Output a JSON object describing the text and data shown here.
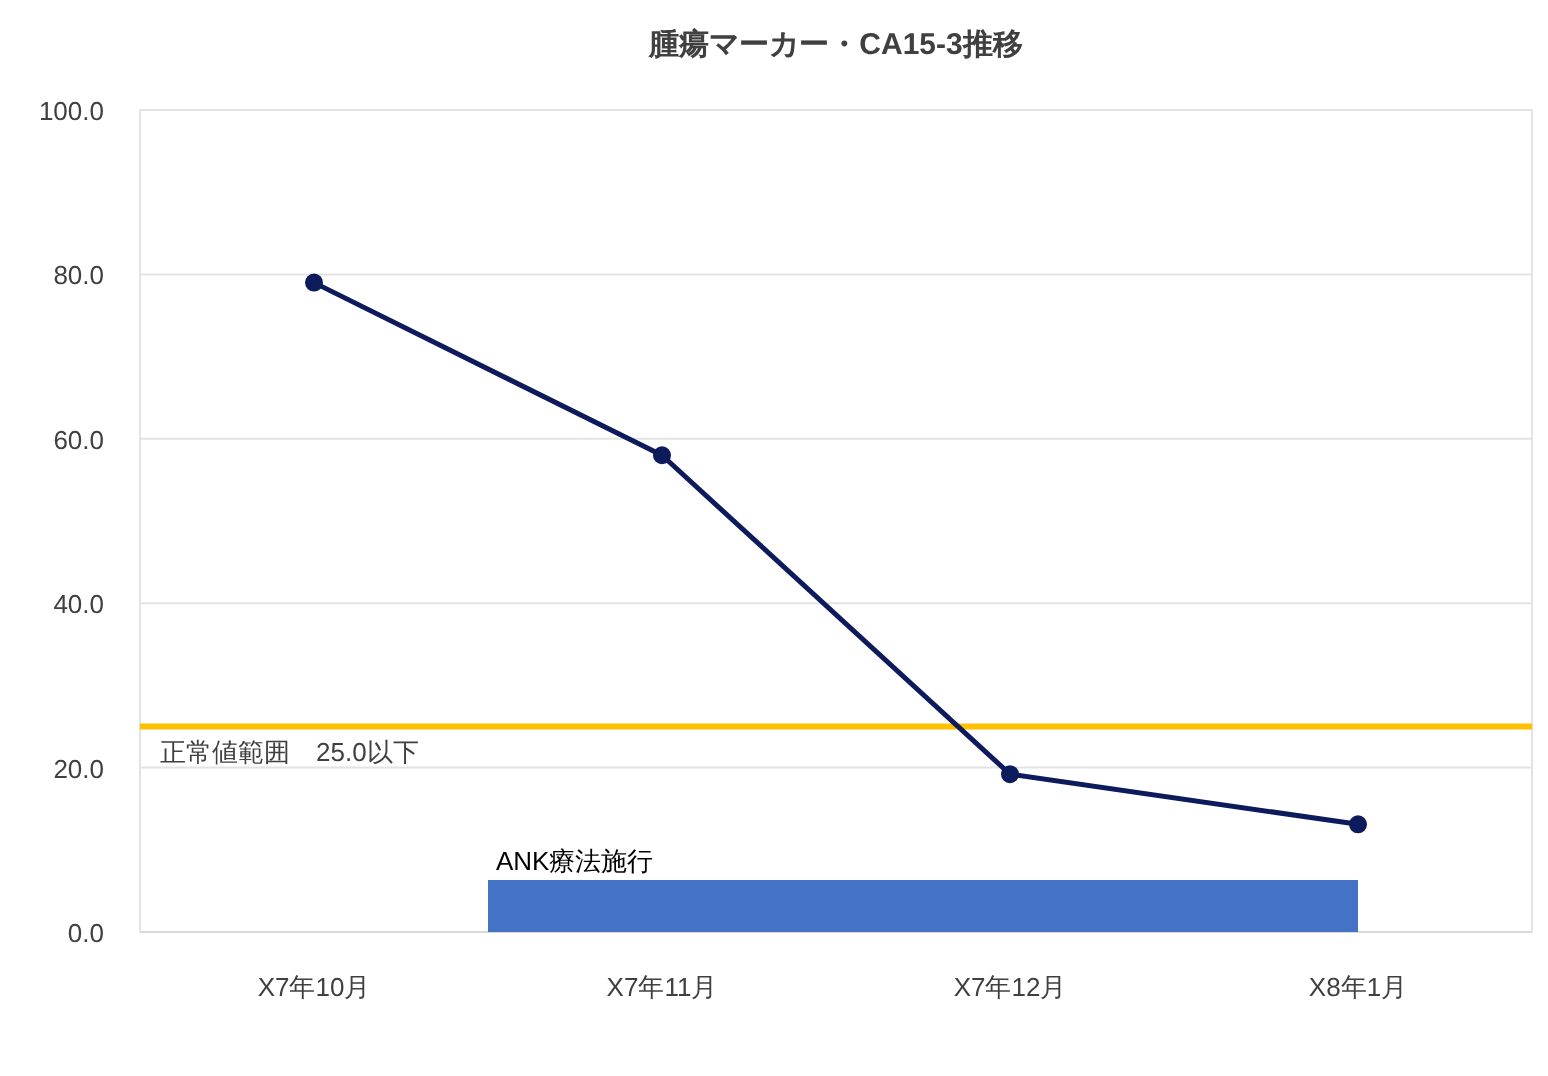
{
  "chart_data": {
    "type": "line",
    "title": "腫瘍マーカー・CA15-3推移",
    "categories": [
      "X7年10月",
      "X7年11月",
      "X7年12月",
      "X8年1月"
    ],
    "series": [
      {
        "color": "#0d1a5c",
        "values": [
          79,
          58,
          19.2,
          13.1
        ]
      }
    ],
    "ylim": [
      0,
      100
    ],
    "yticks": [
      {
        "value": 0,
        "label": "0.0"
      },
      {
        "value": 20,
        "label": "20.0"
      },
      {
        "value": 40,
        "label": "40.0"
      },
      {
        "value": 60,
        "label": "60.0"
      },
      {
        "value": 80,
        "label": "80.0"
      },
      {
        "value": 100,
        "label": "100.0"
      }
    ],
    "grid": "y",
    "marker": "circle",
    "line_style": "solid",
    "ref_lines": [
      {
        "axis": "y",
        "value": 25,
        "label": "正常値範囲　25.0以下",
        "color": "#ffc000"
      }
    ],
    "annotations": [
      "ANK療法施行"
    ]
  }
}
